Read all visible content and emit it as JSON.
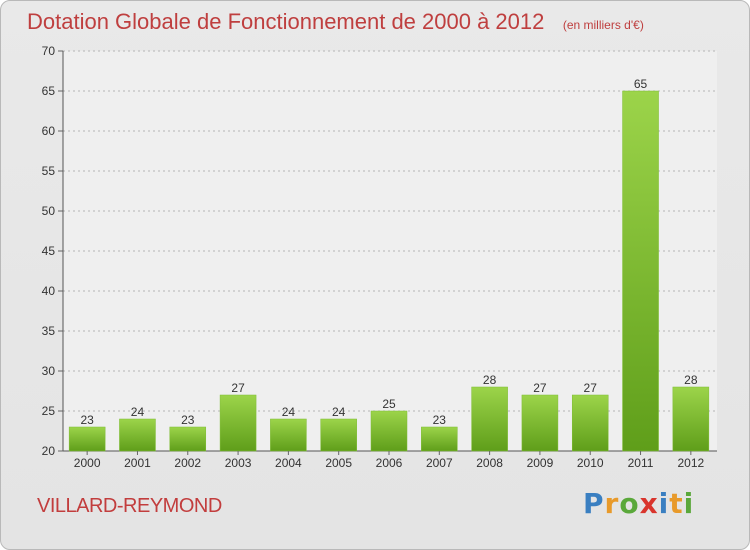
{
  "title": "Dotation Globale de Fonctionnement de 2000 à 2012",
  "unit_note": "(en milliers d'€)",
  "commune": "VILLARD-REYMOND",
  "logo": {
    "text": "Proxiti",
    "letters": [
      {
        "ch": "P",
        "color": "#3a7fc1"
      },
      {
        "ch": "r",
        "color": "#e89a2a"
      },
      {
        "ch": "o",
        "color": "#5aa83a"
      },
      {
        "ch": "x",
        "color": "#d9352d"
      },
      {
        "ch": "i",
        "color": "#3a7fc1"
      },
      {
        "ch": "t",
        "color": "#e89a2a"
      },
      {
        "ch": "i",
        "color": "#5aa83a"
      }
    ]
  },
  "colors": {
    "bar_top": "#9cd44a",
    "bar_bottom": "#5f9e1a",
    "title": "#bf3f3f"
  },
  "chart_data": {
    "type": "bar",
    "title": "Dotation Globale de Fonctionnement de 2000 à 2012",
    "subtitle": "(en milliers d'€)",
    "categories": [
      "2000",
      "2001",
      "2002",
      "2003",
      "2004",
      "2005",
      "2006",
      "2007",
      "2008",
      "2009",
      "2010",
      "2011",
      "2012"
    ],
    "values": [
      23,
      24,
      23,
      27,
      24,
      24,
      25,
      23,
      28,
      27,
      27,
      65,
      28
    ],
    "ylim": [
      20,
      70
    ],
    "yticks": [
      20,
      25,
      30,
      35,
      40,
      45,
      50,
      55,
      60,
      65,
      70
    ],
    "grid": true
  }
}
